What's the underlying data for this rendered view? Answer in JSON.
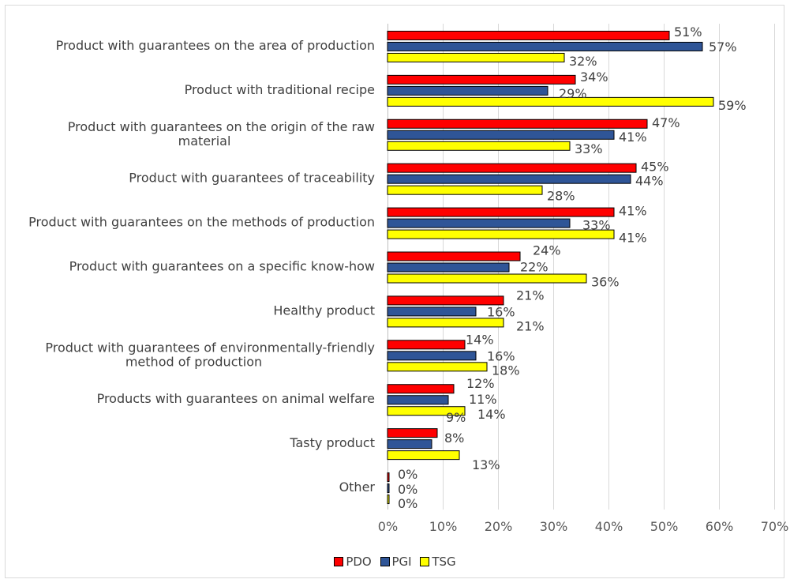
{
  "chart_data": {
    "type": "bar",
    "orientation": "horizontal",
    "categories": [
      "Product with guarantees on the area of production",
      "Product with traditional recipe",
      "Product with guarantees on the origin of the raw material",
      "Product with guarantees of traceability",
      "Product with guarantees on the methods of production",
      "Product with guarantees on a specific know-how",
      "Healthy product",
      "Product with guarantees of environmentally-friendly method of production",
      "Products with guarantees on animal welfare",
      "Tasty product",
      "Other"
    ],
    "category_lines": [
      [
        "Product with guarantees on the area of production"
      ],
      [
        "Product with traditional recipe"
      ],
      [
        "Product with guarantees on the origin of the raw",
        "material"
      ],
      [
        "Product with guarantees of traceability"
      ],
      [
        "Product with guarantees on the methods of production"
      ],
      [
        "Product with guarantees on a specific know-how"
      ],
      [
        "Healthy product"
      ],
      [
        "Product with guarantees of environmentally-friendly",
        "method of production"
      ],
      [
        "Products with guarantees on animal welfare"
      ],
      [
        "Tasty product"
      ],
      [
        "Other"
      ]
    ],
    "series": [
      {
        "name": "PDO",
        "color": "#ff0000",
        "values": [
          51,
          34,
          47,
          45,
          41,
          24,
          21,
          14,
          12,
          9,
          0
        ]
      },
      {
        "name": "PGI",
        "color": "#2f5597",
        "values": [
          57,
          29,
          41,
          44,
          33,
          22,
          16,
          16,
          11,
          8,
          0
        ]
      },
      {
        "name": "TSG",
        "color": "#ffff00",
        "values": [
          32,
          59,
          33,
          28,
          41,
          36,
          21,
          18,
          14,
          13,
          0
        ]
      }
    ],
    "value_suffix": "%",
    "xlim": [
      0,
      70
    ],
    "xticks": [
      0,
      10,
      20,
      30,
      40,
      50,
      60,
      70
    ],
    "xtick_labels": [
      "0%",
      "10%",
      "20%",
      "30%",
      "40%",
      "50%",
      "60%",
      "70%"
    ],
    "grid": true,
    "legend_position": "bottom"
  }
}
